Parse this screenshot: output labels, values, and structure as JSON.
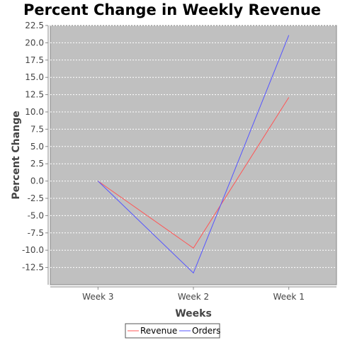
{
  "chart_data": {
    "type": "line",
    "title": "Percent Change in Weekly Revenue",
    "xlabel": "Weeks",
    "ylabel": "Percent Change",
    "categories": [
      "Week 3",
      "Week 2",
      "Week 1"
    ],
    "ylim": [
      -15,
      22.5
    ],
    "yticks": [
      "-12.5",
      "-10.0",
      "-7.5",
      "-5.0",
      "-2.5",
      "0.0",
      "2.5",
      "5.0",
      "7.5",
      "10.0",
      "12.5",
      "15.0",
      "17.5",
      "20.0",
      "22.5"
    ],
    "grid": true,
    "legend_position": "bottom",
    "plot_background": "#c0c0c0",
    "series": [
      {
        "name": "Revenue",
        "color": "#ff5555",
        "values": [
          0.0,
          -9.7,
          12.1
        ]
      },
      {
        "name": "Orders",
        "color": "#5555ff",
        "values": [
          0.0,
          -13.3,
          21.1
        ]
      }
    ]
  }
}
